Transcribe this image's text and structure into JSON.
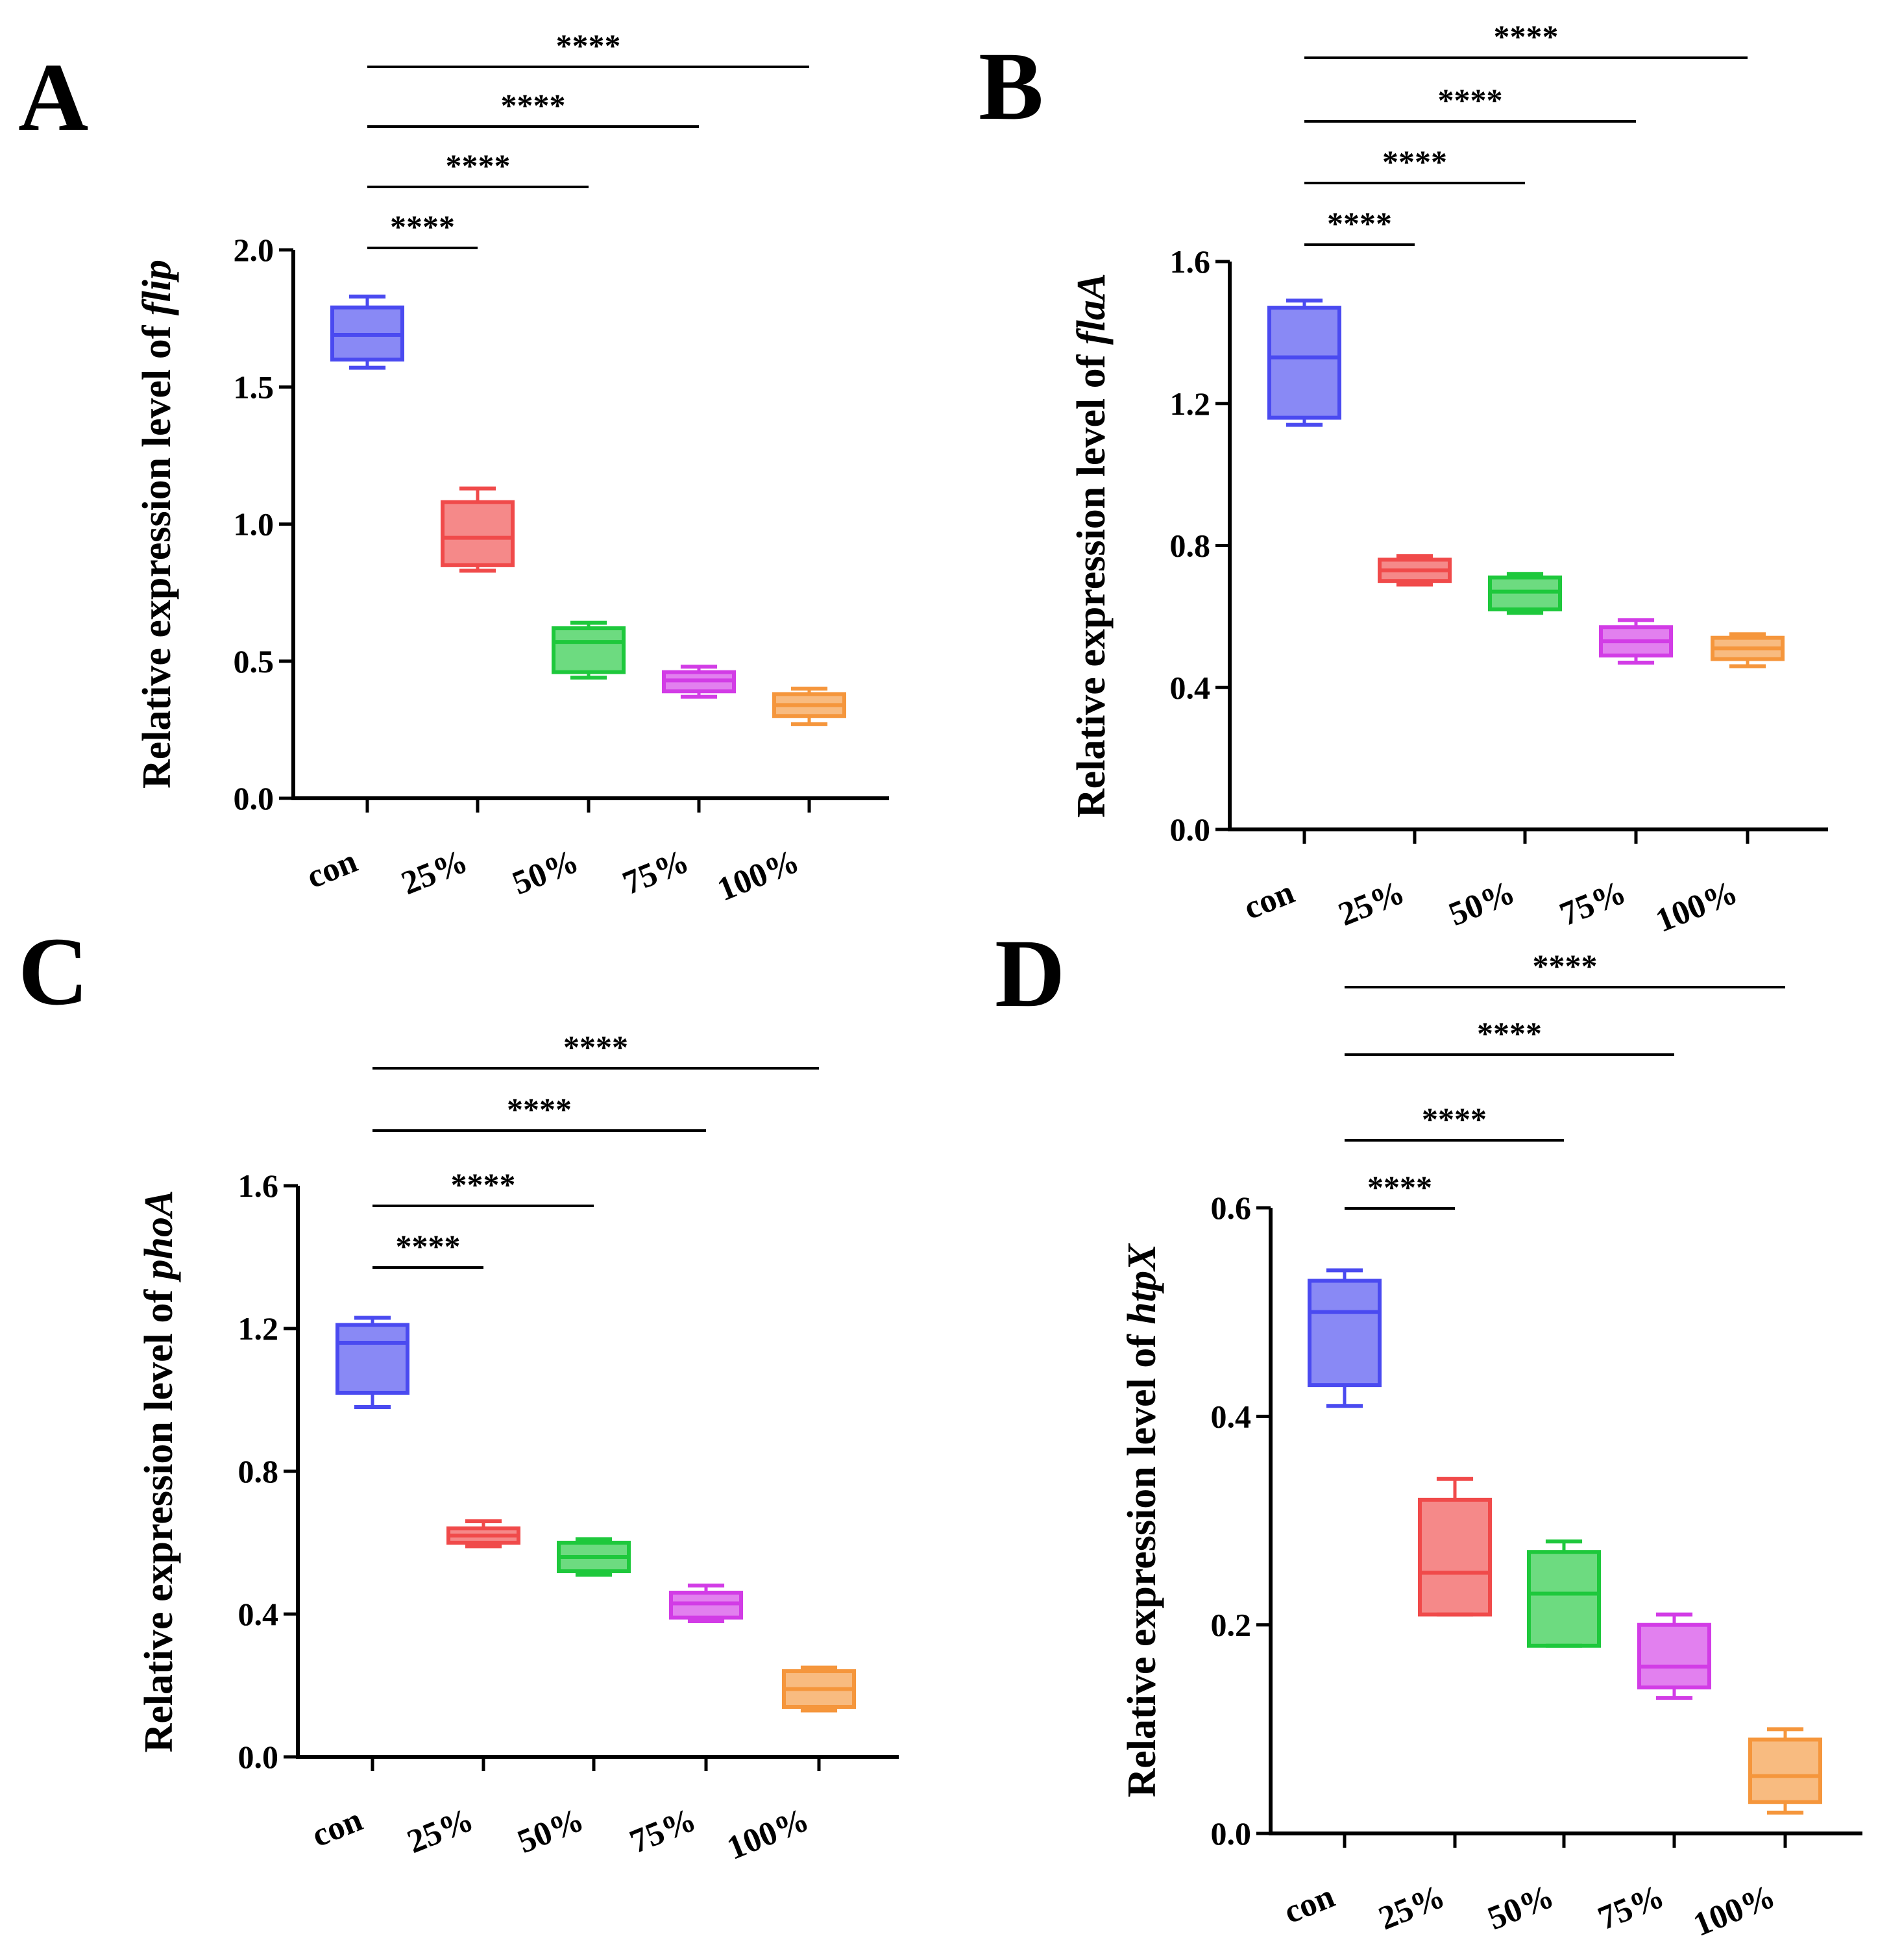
{
  "chart_data": [
    {
      "panel": "A",
      "type": "box",
      "ylabel_prefix": "Relative expression level of ",
      "gene": "flip",
      "ylim": [
        0,
        2.0
      ],
      "yticks": [
        "0.0",
        "0.5",
        "1.0",
        "1.5",
        "2.0"
      ],
      "categories": [
        "con",
        "25%",
        "50%",
        "75%",
        "100%"
      ],
      "colors": [
        "#4a4af0",
        "#f04a4a",
        "#1ec83c",
        "#d23ce6",
        "#f5963c"
      ],
      "boxes": [
        {
          "min": 1.57,
          "q1": 1.6,
          "median": 1.69,
          "q3": 1.79,
          "max": 1.83
        },
        {
          "min": 0.83,
          "q1": 0.85,
          "median": 0.95,
          "q3": 1.08,
          "max": 1.13
        },
        {
          "min": 0.44,
          "q1": 0.46,
          "median": 0.57,
          "q3": 0.62,
          "max": 0.64
        },
        {
          "min": 0.37,
          "q1": 0.39,
          "median": 0.43,
          "q3": 0.46,
          "max": 0.48
        },
        {
          "min": 0.27,
          "q1": 0.3,
          "median": 0.34,
          "q3": 0.38,
          "max": 0.4
        }
      ],
      "significance": [
        {
          "to": "25%",
          "label": "****"
        },
        {
          "to": "50%",
          "label": "****"
        },
        {
          "to": "75%",
          "label": "****"
        },
        {
          "to": "100%",
          "label": "****"
        }
      ]
    },
    {
      "panel": "B",
      "type": "box",
      "ylabel_prefix": "Relative expression level of ",
      "gene": "flaA",
      "ylim": [
        0,
        1.6
      ],
      "yticks": [
        "0.0",
        "0.4",
        "0.8",
        "1.2",
        "1.6"
      ],
      "categories": [
        "con",
        "25%",
        "50%",
        "75%",
        "100%"
      ],
      "colors": [
        "#4a4af0",
        "#f04a4a",
        "#1ec83c",
        "#d23ce6",
        "#f5963c"
      ],
      "boxes": [
        {
          "min": 1.14,
          "q1": 1.16,
          "median": 1.33,
          "q3": 1.47,
          "max": 1.49
        },
        {
          "min": 0.69,
          "q1": 0.7,
          "median": 0.73,
          "q3": 0.76,
          "max": 0.77
        },
        {
          "min": 0.61,
          "q1": 0.62,
          "median": 0.67,
          "q3": 0.71,
          "max": 0.72
        },
        {
          "min": 0.47,
          "q1": 0.49,
          "median": 0.53,
          "q3": 0.57,
          "max": 0.59
        },
        {
          "min": 0.46,
          "q1": 0.48,
          "median": 0.51,
          "q3": 0.54,
          "max": 0.55
        }
      ],
      "significance": [
        {
          "to": "25%",
          "label": "****"
        },
        {
          "to": "50%",
          "label": "****"
        },
        {
          "to": "75%",
          "label": "****"
        },
        {
          "to": "100%",
          "label": "****"
        }
      ]
    },
    {
      "panel": "C",
      "type": "box",
      "ylabel_prefix": "Relative expression level of ",
      "gene": "phoA",
      "ylim": [
        0,
        1.6
      ],
      "yticks": [
        "0.0",
        "0.4",
        "0.8",
        "1.2",
        "1.6"
      ],
      "categories": [
        "con",
        "25%",
        "50%",
        "75%",
        "100%"
      ],
      "colors": [
        "#4a4af0",
        "#f04a4a",
        "#1ec83c",
        "#d23ce6",
        "#f5963c"
      ],
      "boxes": [
        {
          "min": 0.98,
          "q1": 1.02,
          "median": 1.16,
          "q3": 1.21,
          "max": 1.23
        },
        {
          "min": 0.59,
          "q1": 0.6,
          "median": 0.62,
          "q3": 0.64,
          "max": 0.66
        },
        {
          "min": 0.51,
          "q1": 0.52,
          "median": 0.56,
          "q3": 0.6,
          "max": 0.61
        },
        {
          "min": 0.38,
          "q1": 0.39,
          "median": 0.43,
          "q3": 0.46,
          "max": 0.48
        },
        {
          "min": 0.13,
          "q1": 0.14,
          "median": 0.19,
          "q3": 0.24,
          "max": 0.25
        }
      ],
      "significance": [
        {
          "to": "25%",
          "label": "****"
        },
        {
          "to": "50%",
          "label": "****"
        },
        {
          "to": "75%",
          "label": "****"
        },
        {
          "to": "100%",
          "label": "****"
        }
      ]
    },
    {
      "panel": "D",
      "type": "box",
      "ylabel_prefix": "Relative expression level of ",
      "gene": "htpX",
      "ylim": [
        0,
        0.6
      ],
      "yticks": [
        "0.0",
        "0.2",
        "0.4",
        "0.6"
      ],
      "categories": [
        "con",
        "25%",
        "50%",
        "75%",
        "100%"
      ],
      "colors": [
        "#4a4af0",
        "#f04a4a",
        "#1ec83c",
        "#d23ce6",
        "#f5963c"
      ],
      "boxes": [
        {
          "min": 0.41,
          "q1": 0.43,
          "median": 0.5,
          "q3": 0.53,
          "max": 0.54
        },
        {
          "min": 0.21,
          "q1": 0.21,
          "median": 0.25,
          "q3": 0.32,
          "max": 0.34
        },
        {
          "min": 0.18,
          "q1": 0.18,
          "median": 0.23,
          "q3": 0.27,
          "max": 0.28
        },
        {
          "min": 0.13,
          "q1": 0.14,
          "median": 0.16,
          "q3": 0.2,
          "max": 0.21
        },
        {
          "min": 0.02,
          "q1": 0.03,
          "median": 0.055,
          "q3": 0.09,
          "max": 0.1
        }
      ],
      "significance": [
        {
          "to": "25%",
          "label": "****"
        },
        {
          "to": "50%",
          "label": "****"
        },
        {
          "to": "75%",
          "label": "****"
        },
        {
          "to": "100%",
          "label": "****"
        }
      ]
    }
  ]
}
